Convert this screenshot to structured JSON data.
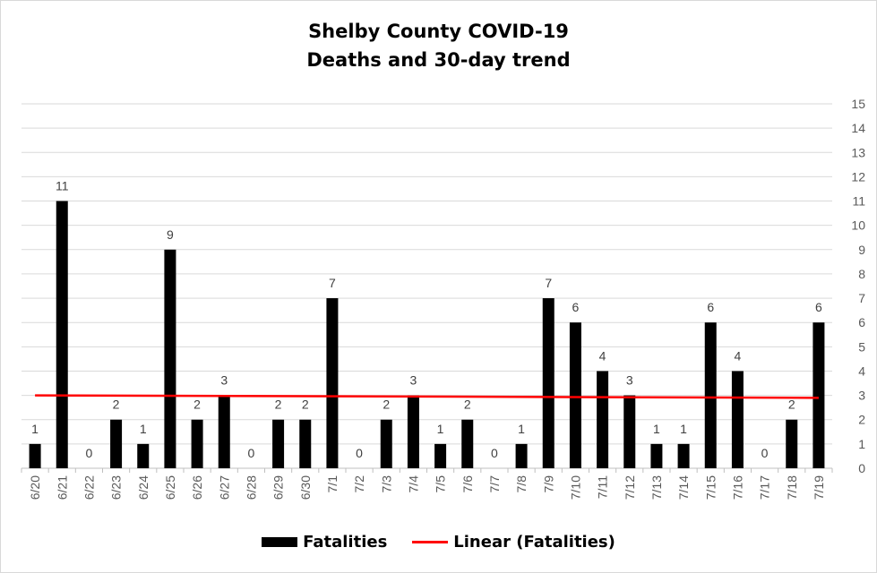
{
  "chart_data": {
    "type": "bar",
    "title": "Shelby County COVID-19",
    "subtitle": "Deaths and 30-day trend",
    "categories": [
      "6/20",
      "6/21",
      "6/22",
      "6/23",
      "6/24",
      "6/25",
      "6/26",
      "6/27",
      "6/28",
      "6/29",
      "6/30",
      "7/1",
      "7/2",
      "7/3",
      "7/4",
      "7/5",
      "7/6",
      "7/7",
      "7/8",
      "7/9",
      "7/10",
      "7/11",
      "7/12",
      "7/13",
      "7/14",
      "7/15",
      "7/16",
      "7/17",
      "7/18",
      "7/19"
    ],
    "series": [
      {
        "name": "Fatalities",
        "values": [
          1,
          11,
          0,
          2,
          1,
          9,
          2,
          3,
          0,
          2,
          2,
          7,
          0,
          2,
          3,
          1,
          2,
          0,
          1,
          7,
          6,
          4,
          3,
          1,
          1,
          6,
          4,
          0,
          2,
          6
        ],
        "color": "#000000"
      }
    ],
    "trendline": {
      "name": "Linear (Fatalities)",
      "start": 3.0,
      "end": 2.9,
      "color": "#ff0000"
    },
    "ylim": [
      0,
      15
    ],
    "yticks": [
      0,
      1,
      2,
      3,
      4,
      5,
      6,
      7,
      8,
      9,
      10,
      11,
      12,
      13,
      14,
      15
    ],
    "y_axis_side": "right",
    "grid": true,
    "legend_position": "bottom",
    "xlabel": "",
    "ylabel": ""
  }
}
